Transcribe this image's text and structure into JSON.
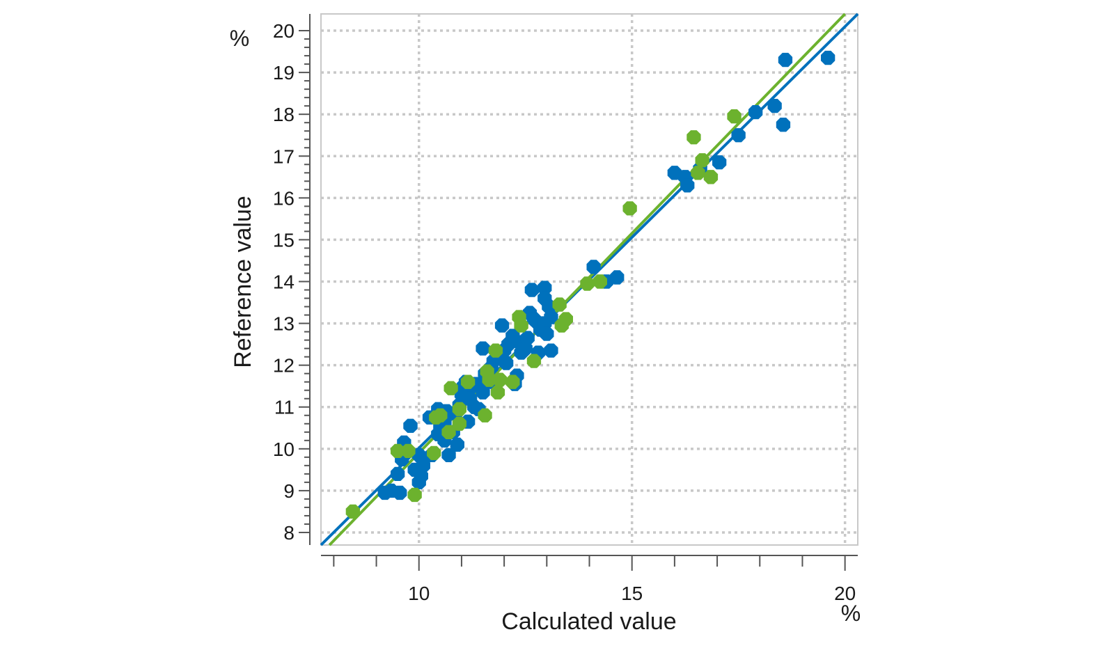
{
  "chart_data": {
    "type": "scatter",
    "title": "",
    "xlabel": "Calculated value",
    "ylabel": "Reference value",
    "x_unit": "%",
    "y_unit": "%",
    "xlim": [
      7.7,
      20.3
    ],
    "ylim": [
      7.7,
      20.4
    ],
    "x_ticks": [
      10,
      15,
      20
    ],
    "y_ticks": [
      8,
      9,
      10,
      11,
      12,
      13,
      14,
      15,
      16,
      17,
      18,
      19,
      20
    ],
    "grid": true,
    "legend": "none",
    "colors": {
      "calibration": "#0071bc",
      "validation": "#6cb22e",
      "grid": "#c8c8c8",
      "frame": "#c8c8c8",
      "axis": "#555555"
    },
    "series": [
      {
        "color": "#0071bc",
        "points": [
          [
            9.2,
            8.95
          ],
          [
            9.35,
            9.0
          ],
          [
            9.55,
            8.95
          ],
          [
            9.5,
            9.4
          ],
          [
            9.6,
            9.75
          ],
          [
            9.65,
            10.15
          ],
          [
            9.8,
            10.55
          ],
          [
            9.9,
            9.5
          ],
          [
            10.0,
            9.2
          ],
          [
            10.05,
            9.35
          ],
          [
            10.1,
            9.6
          ],
          [
            10.0,
            9.85
          ],
          [
            10.3,
            9.85
          ],
          [
            10.25,
            10.75
          ],
          [
            10.45,
            10.95
          ],
          [
            10.5,
            10.55
          ],
          [
            10.65,
            10.9
          ],
          [
            10.6,
            10.2
          ],
          [
            10.8,
            10.4
          ],
          [
            10.9,
            10.1
          ],
          [
            10.7,
            9.85
          ],
          [
            10.85,
            10.85
          ],
          [
            10.95,
            11.05
          ],
          [
            11.0,
            11.3
          ],
          [
            11.05,
            11.5
          ],
          [
            11.1,
            11.6
          ],
          [
            11.2,
            11.45
          ],
          [
            11.15,
            10.65
          ],
          [
            11.3,
            11.0
          ],
          [
            11.4,
            10.95
          ],
          [
            11.5,
            11.35
          ],
          [
            11.55,
            11.8
          ],
          [
            11.7,
            11.95
          ],
          [
            11.75,
            12.1
          ],
          [
            11.5,
            12.4
          ],
          [
            11.9,
            12.2
          ],
          [
            12.0,
            12.35
          ],
          [
            12.1,
            12.5
          ],
          [
            12.2,
            12.7
          ],
          [
            12.35,
            12.55
          ],
          [
            12.25,
            11.55
          ],
          [
            12.3,
            11.75
          ],
          [
            11.95,
            12.95
          ],
          [
            12.5,
            12.4
          ],
          [
            12.4,
            12.3
          ],
          [
            12.55,
            12.65
          ],
          [
            12.6,
            13.25
          ],
          [
            12.7,
            13.1
          ],
          [
            12.8,
            13.0
          ],
          [
            12.85,
            12.85
          ],
          [
            12.95,
            13.0
          ],
          [
            13.0,
            12.75
          ],
          [
            13.05,
            13.4
          ],
          [
            13.1,
            13.15
          ],
          [
            12.65,
            13.8
          ],
          [
            12.95,
            13.85
          ],
          [
            12.8,
            12.3
          ],
          [
            13.1,
            12.35
          ],
          [
            12.95,
            13.6
          ],
          [
            14.1,
            14.35
          ],
          [
            14.4,
            14.0
          ],
          [
            14.65,
            14.1
          ],
          [
            16.0,
            16.6
          ],
          [
            16.25,
            16.5
          ],
          [
            16.3,
            16.3
          ],
          [
            16.6,
            16.7
          ],
          [
            17.05,
            16.85
          ],
          [
            17.5,
            17.5
          ],
          [
            17.9,
            18.05
          ],
          [
            18.35,
            18.2
          ],
          [
            18.55,
            17.75
          ],
          [
            18.6,
            19.3
          ],
          [
            19.6,
            19.35
          ],
          [
            10.45,
            10.35
          ],
          [
            10.6,
            10.65
          ],
          [
            10.9,
            10.9
          ],
          [
            11.2,
            11.2
          ],
          [
            11.35,
            11.55
          ],
          [
            11.65,
            11.6
          ],
          [
            12.05,
            12.05
          ]
        ]
      },
      {
        "color": "#6cb22e",
        "points": [
          [
            8.45,
            8.5
          ],
          [
            9.5,
            9.95
          ],
          [
            9.75,
            9.95
          ],
          [
            9.9,
            8.9
          ],
          [
            10.35,
            9.9
          ],
          [
            10.4,
            10.75
          ],
          [
            10.5,
            10.8
          ],
          [
            10.7,
            10.4
          ],
          [
            10.75,
            11.45
          ],
          [
            10.95,
            10.6
          ],
          [
            10.95,
            10.95
          ],
          [
            11.15,
            11.6
          ],
          [
            11.55,
            10.8
          ],
          [
            11.6,
            11.85
          ],
          [
            11.65,
            11.65
          ],
          [
            11.8,
            12.35
          ],
          [
            11.85,
            11.35
          ],
          [
            11.9,
            11.65
          ],
          [
            12.2,
            11.6
          ],
          [
            12.35,
            13.15
          ],
          [
            12.4,
            12.95
          ],
          [
            12.7,
            12.1
          ],
          [
            13.3,
            13.45
          ],
          [
            13.35,
            12.95
          ],
          [
            13.45,
            13.1
          ],
          [
            13.95,
            13.95
          ],
          [
            14.25,
            14.0
          ],
          [
            14.95,
            15.75
          ],
          [
            16.45,
            17.45
          ],
          [
            16.55,
            16.6
          ],
          [
            16.65,
            16.9
          ],
          [
            16.85,
            16.5
          ],
          [
            17.4,
            17.95
          ]
        ]
      }
    ],
    "fit_lines": [
      {
        "color": "#0071bc",
        "from": [
          7.7,
          7.7
        ],
        "to": [
          20.3,
          20.4
        ]
      },
      {
        "color": "#6cb22e",
        "from": [
          7.9,
          7.7
        ],
        "to": [
          20.0,
          20.4
        ]
      }
    ]
  }
}
